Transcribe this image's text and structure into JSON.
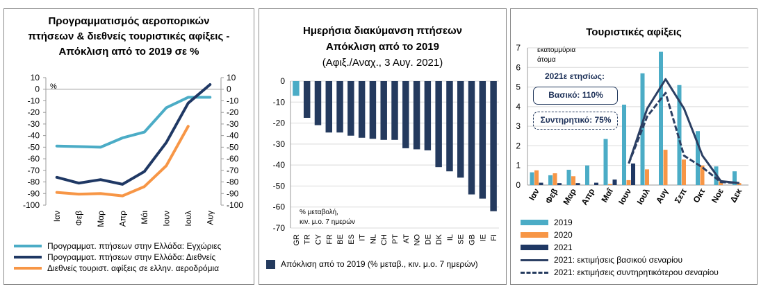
{
  "panels": {
    "left": {
      "title_lines": [
        "Προγραμματισμός αεροπορικών",
        "πτήσεων & διεθνείς τουριστικές αφίξεις -",
        "Απόκλιση από το 2019 σε %"
      ],
      "legend": [
        "Προγραμματ. πτήσεων στην Ελλάδα: Εγχώριες",
        "Προγραμματ. πτήσεων στην Ελλάδα: Διεθνείς",
        "Διεθνείς τουριστ. αφίξεις σε ελλην. αεροδρόμια"
      ]
    },
    "middle": {
      "title_lines": [
        "Ημερήσια διακύμανση πτήσεων",
        "Απόκλιση από το 2019"
      ],
      "subtitle": "(Αφιξ./Αναχ., 3 Αυγ. 2021)",
      "note_lines": [
        "% μεταβολή,",
        "κιν. μ.ο. 7 ημερών"
      ],
      "legend": [
        "Απόκλιση από το 2019 (% μεταβ., κιν. μ.ο. 7 ημερών)"
      ]
    },
    "right": {
      "title_lines": [
        "Τουριστικές αφίξεις"
      ],
      "unit_lines": [
        "εκατομμύρια",
        "άτομα"
      ],
      "annotation_header": "2021ε ετησίως:",
      "annotation_base": "Βασικό: 110%",
      "annotation_cons": "Συντηρητικό: 75%",
      "legend": [
        "2019",
        "2020",
        "2021",
        "2021: εκτιμήσεις βασικού σεναρίου",
        "2021: εκτιμήσεις συντηρητικότερου σεναρίου"
      ]
    }
  },
  "colors": {
    "domestic": "#4bacc6",
    "international": "#1f3864",
    "tourist": "#f79646",
    "bars_mid": "#243a5e",
    "bar_gr": "#4bacc6",
    "y2019": "#4bacc6",
    "y2020": "#f79646",
    "y2021": "#1f3864",
    "scenario": "#2b3f63"
  },
  "chart_data": [
    {
      "type": "line",
      "title": "Προγραμματισμός αεροπορικών πτήσεων & διεθνείς τουριστικές αφίξεις - Απόκλιση από το 2019 σε %",
      "ylabel": "%",
      "categories": [
        "Ιαν",
        "Φεβ",
        "Μαρ",
        "Απρ",
        "Μάι",
        "Ιουν",
        "Ιουλ",
        "Αυγ"
      ],
      "ylim": [
        -100,
        10
      ],
      "yticks": [
        10,
        0,
        -10,
        -20,
        -30,
        -40,
        -50,
        -60,
        -70,
        -80,
        -90,
        -100
      ],
      "series": [
        {
          "name": "Προγραμματ. πτήσεων στην Ελλάδα: Εγχώριες",
          "values": [
            -49,
            -49.5,
            -50,
            -42,
            -37,
            -16,
            -7,
            -7
          ]
        },
        {
          "name": "Προγραμματ. πτήσεων στην Ελλάδα: Διεθνείς",
          "values": [
            -76,
            -81,
            -78,
            -82,
            -71,
            -46,
            -12,
            4
          ]
        },
        {
          "name": "Διεθνείς τουριστ. αφίξεις σε ελλην. αεροδρόμια",
          "values": [
            -89,
            -90.5,
            -90,
            -92,
            -84,
            -66,
            -32,
            null
          ]
        }
      ],
      "grid": false,
      "legend": "bottom"
    },
    {
      "type": "bar",
      "title": "Ημερήσια διακύμανση πτήσεων Απόκλιση από το 2019",
      "subtitle": "(Αφιξ./Αναχ., 3 Αυγ. 2021)",
      "categories": [
        "GR",
        "TR",
        "CY",
        "FR",
        "BE",
        "ES",
        "IT",
        "NL",
        "CH",
        "PT",
        "AT",
        "NO",
        "DE",
        "DK",
        "IL",
        "SE",
        "GB",
        "IE",
        "FI"
      ],
      "series": [
        {
          "name": "Απόκλιση από το 2019 (% μεταβ., κιν. μ.ο. 7 ημερών)",
          "values": [
            -7,
            -17.5,
            -21,
            -24.5,
            -24.5,
            -26,
            -27,
            -27.5,
            -28,
            -28,
            -32,
            -32.5,
            -33,
            -41,
            -43,
            -46,
            -54,
            -56,
            -62
          ]
        }
      ],
      "ylim": [
        -70,
        0
      ],
      "yticks": [
        0,
        -10,
        -20,
        -30,
        -40,
        -50,
        -60,
        -70
      ],
      "grid": true,
      "legend": "bottom"
    },
    {
      "type": "bar",
      "title": "Τουριστικές αφίξεις",
      "ylabel": "εκατομμύρια άτομα",
      "categories": [
        "Ιαν",
        "Φεβ",
        "Μαρ",
        "Απρ",
        "Μαΐ",
        "Ιουν",
        "Ιουλ",
        "Αυγ",
        "Σεπ",
        "Οκτ",
        "Νοε",
        "Δεκ"
      ],
      "ylim": [
        0,
        7
      ],
      "yticks": [
        0,
        1,
        2,
        3,
        4,
        5,
        6,
        7
      ],
      "series": [
        {
          "name": "2019",
          "values": [
            0.65,
            0.5,
            0.78,
            1.0,
            2.35,
            4.1,
            5.7,
            6.8,
            5.1,
            2.75,
            0.95,
            0.7
          ]
        },
        {
          "name": "2020",
          "values": [
            0.75,
            0.6,
            0.45,
            0.0,
            0.05,
            0.25,
            0.8,
            1.8,
            1.3,
            1.0,
            0.18,
            0.1
          ]
        },
        {
          "name": "2021",
          "values": [
            0.12,
            0.1,
            0.1,
            0.12,
            0.28,
            1.1,
            null,
            null,
            null,
            null,
            null,
            null
          ]
        },
        {
          "name": "2021: εκτιμήσεις βασικού σεναρίου",
          "values": [
            null,
            null,
            null,
            null,
            null,
            1.1,
            3.9,
            5.4,
            3.9,
            1.5,
            0.2,
            0.1
          ]
        },
        {
          "name": "2021: εκτιμήσεις συντηρητικότερου σεναρίου",
          "values": [
            null,
            null,
            null,
            null,
            null,
            1.1,
            3.5,
            4.7,
            1.5,
            0.9,
            0.15,
            0.1
          ]
        }
      ],
      "grid": true,
      "legend": "bottom"
    }
  ]
}
